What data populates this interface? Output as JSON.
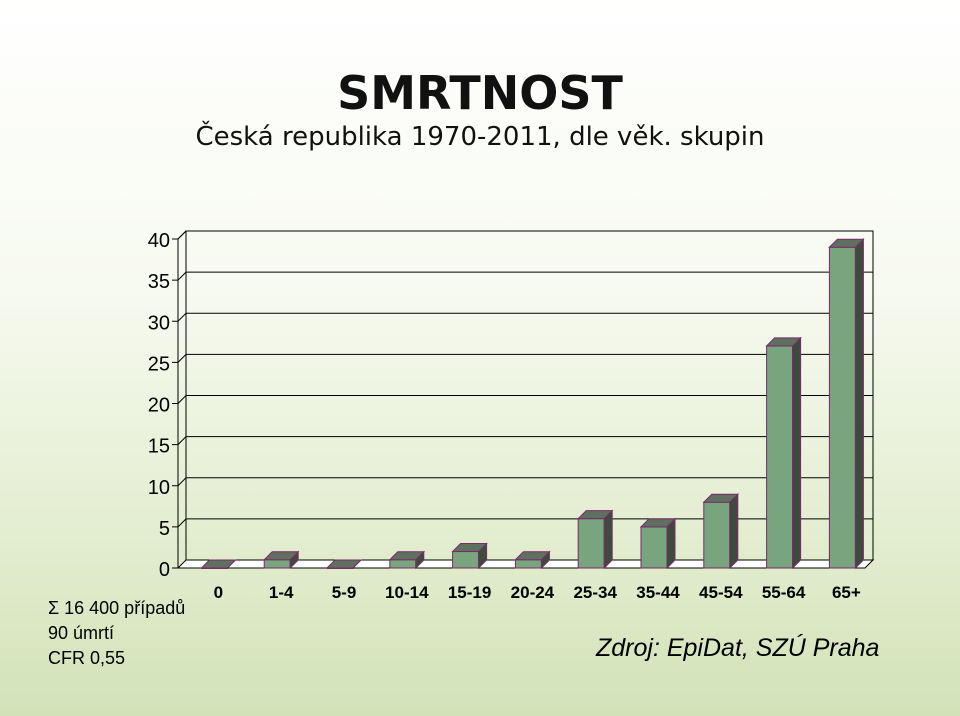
{
  "header": {
    "title": "SMRTNOST",
    "subtitle": "Česká republika 1970-2011, dle věk. skupin"
  },
  "chart_data": {
    "type": "bar",
    "categories": [
      "0",
      "1-4",
      "5-9",
      "10-14",
      "15-19",
      "20-24",
      "25-34",
      "35-44",
      "45-54",
      "55-64",
      "65+"
    ],
    "values": [
      0,
      1,
      0,
      1,
      2,
      1,
      6,
      5,
      8,
      27,
      39
    ],
    "title": "",
    "xlabel": "",
    "ylabel": "",
    "ylim": [
      0,
      40
    ],
    "yticks": [
      "0",
      "5",
      "10",
      "15",
      "20",
      "25",
      "30",
      "35",
      "40"
    ],
    "grid": true,
    "colors": {
      "bar": "#78a47e",
      "bar_side": "#3f4a3f",
      "bar_top": "#5f7060",
      "outline": "#7a2a6a"
    }
  },
  "stats": {
    "cases": "Σ 16 400 případů",
    "deaths": "90 úmrtí",
    "cfr": "CFR 0,55"
  },
  "source": "Zdroj: EpiDat, SZÚ Praha"
}
